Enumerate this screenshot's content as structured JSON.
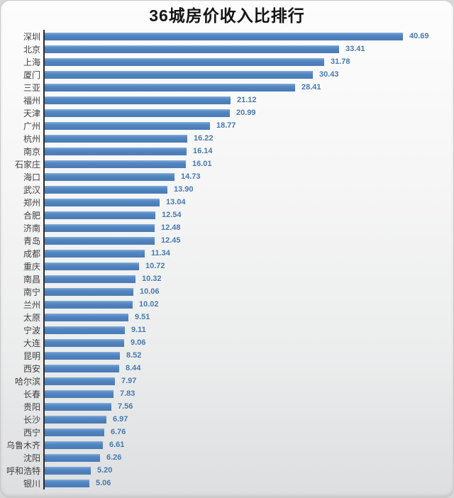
{
  "title": "36城房价收入比排行",
  "colors": {
    "bar": "#4e81bd",
    "value_label": "#4879ae",
    "city_label": "#3f3f3f",
    "axis": "#2b2b2b",
    "title_text": "#141414",
    "card_background": "#f2f2f2"
  },
  "chart_data": {
    "type": "bar",
    "orientation": "horizontal",
    "title": "36城房价收入比排行",
    "xlabel": "",
    "ylabel": "",
    "xlim": [
      0,
      43
    ],
    "grid": false,
    "legend": false,
    "sort": "descending",
    "value_labels_shown": true,
    "categories": [
      "深圳",
      "北京",
      "上海",
      "厦门",
      "三亚",
      "福州",
      "天津",
      "广州",
      "杭州",
      "南京",
      "石家庄",
      "海口",
      "武汉",
      "郑州",
      "合肥",
      "济南",
      "青岛",
      "成都",
      "重庆",
      "南昌",
      "南宁",
      "兰州",
      "太原",
      "宁波",
      "大连",
      "昆明",
      "西安",
      "哈尔滨",
      "长春",
      "贵阳",
      "长沙",
      "西宁",
      "乌鲁木齐",
      "沈阳",
      "呼和浩特",
      "银川"
    ],
    "values": [
      40.69,
      33.41,
      31.78,
      30.43,
      28.41,
      21.12,
      20.99,
      18.77,
      16.22,
      16.14,
      16.01,
      14.73,
      13.9,
      13.04,
      12.54,
      12.48,
      12.45,
      11.34,
      10.72,
      10.32,
      10.06,
      10.02,
      9.51,
      9.11,
      9.06,
      8.52,
      8.44,
      7.97,
      7.83,
      7.56,
      6.97,
      6.76,
      6.61,
      6.26,
      5.2,
      5.06
    ]
  }
}
